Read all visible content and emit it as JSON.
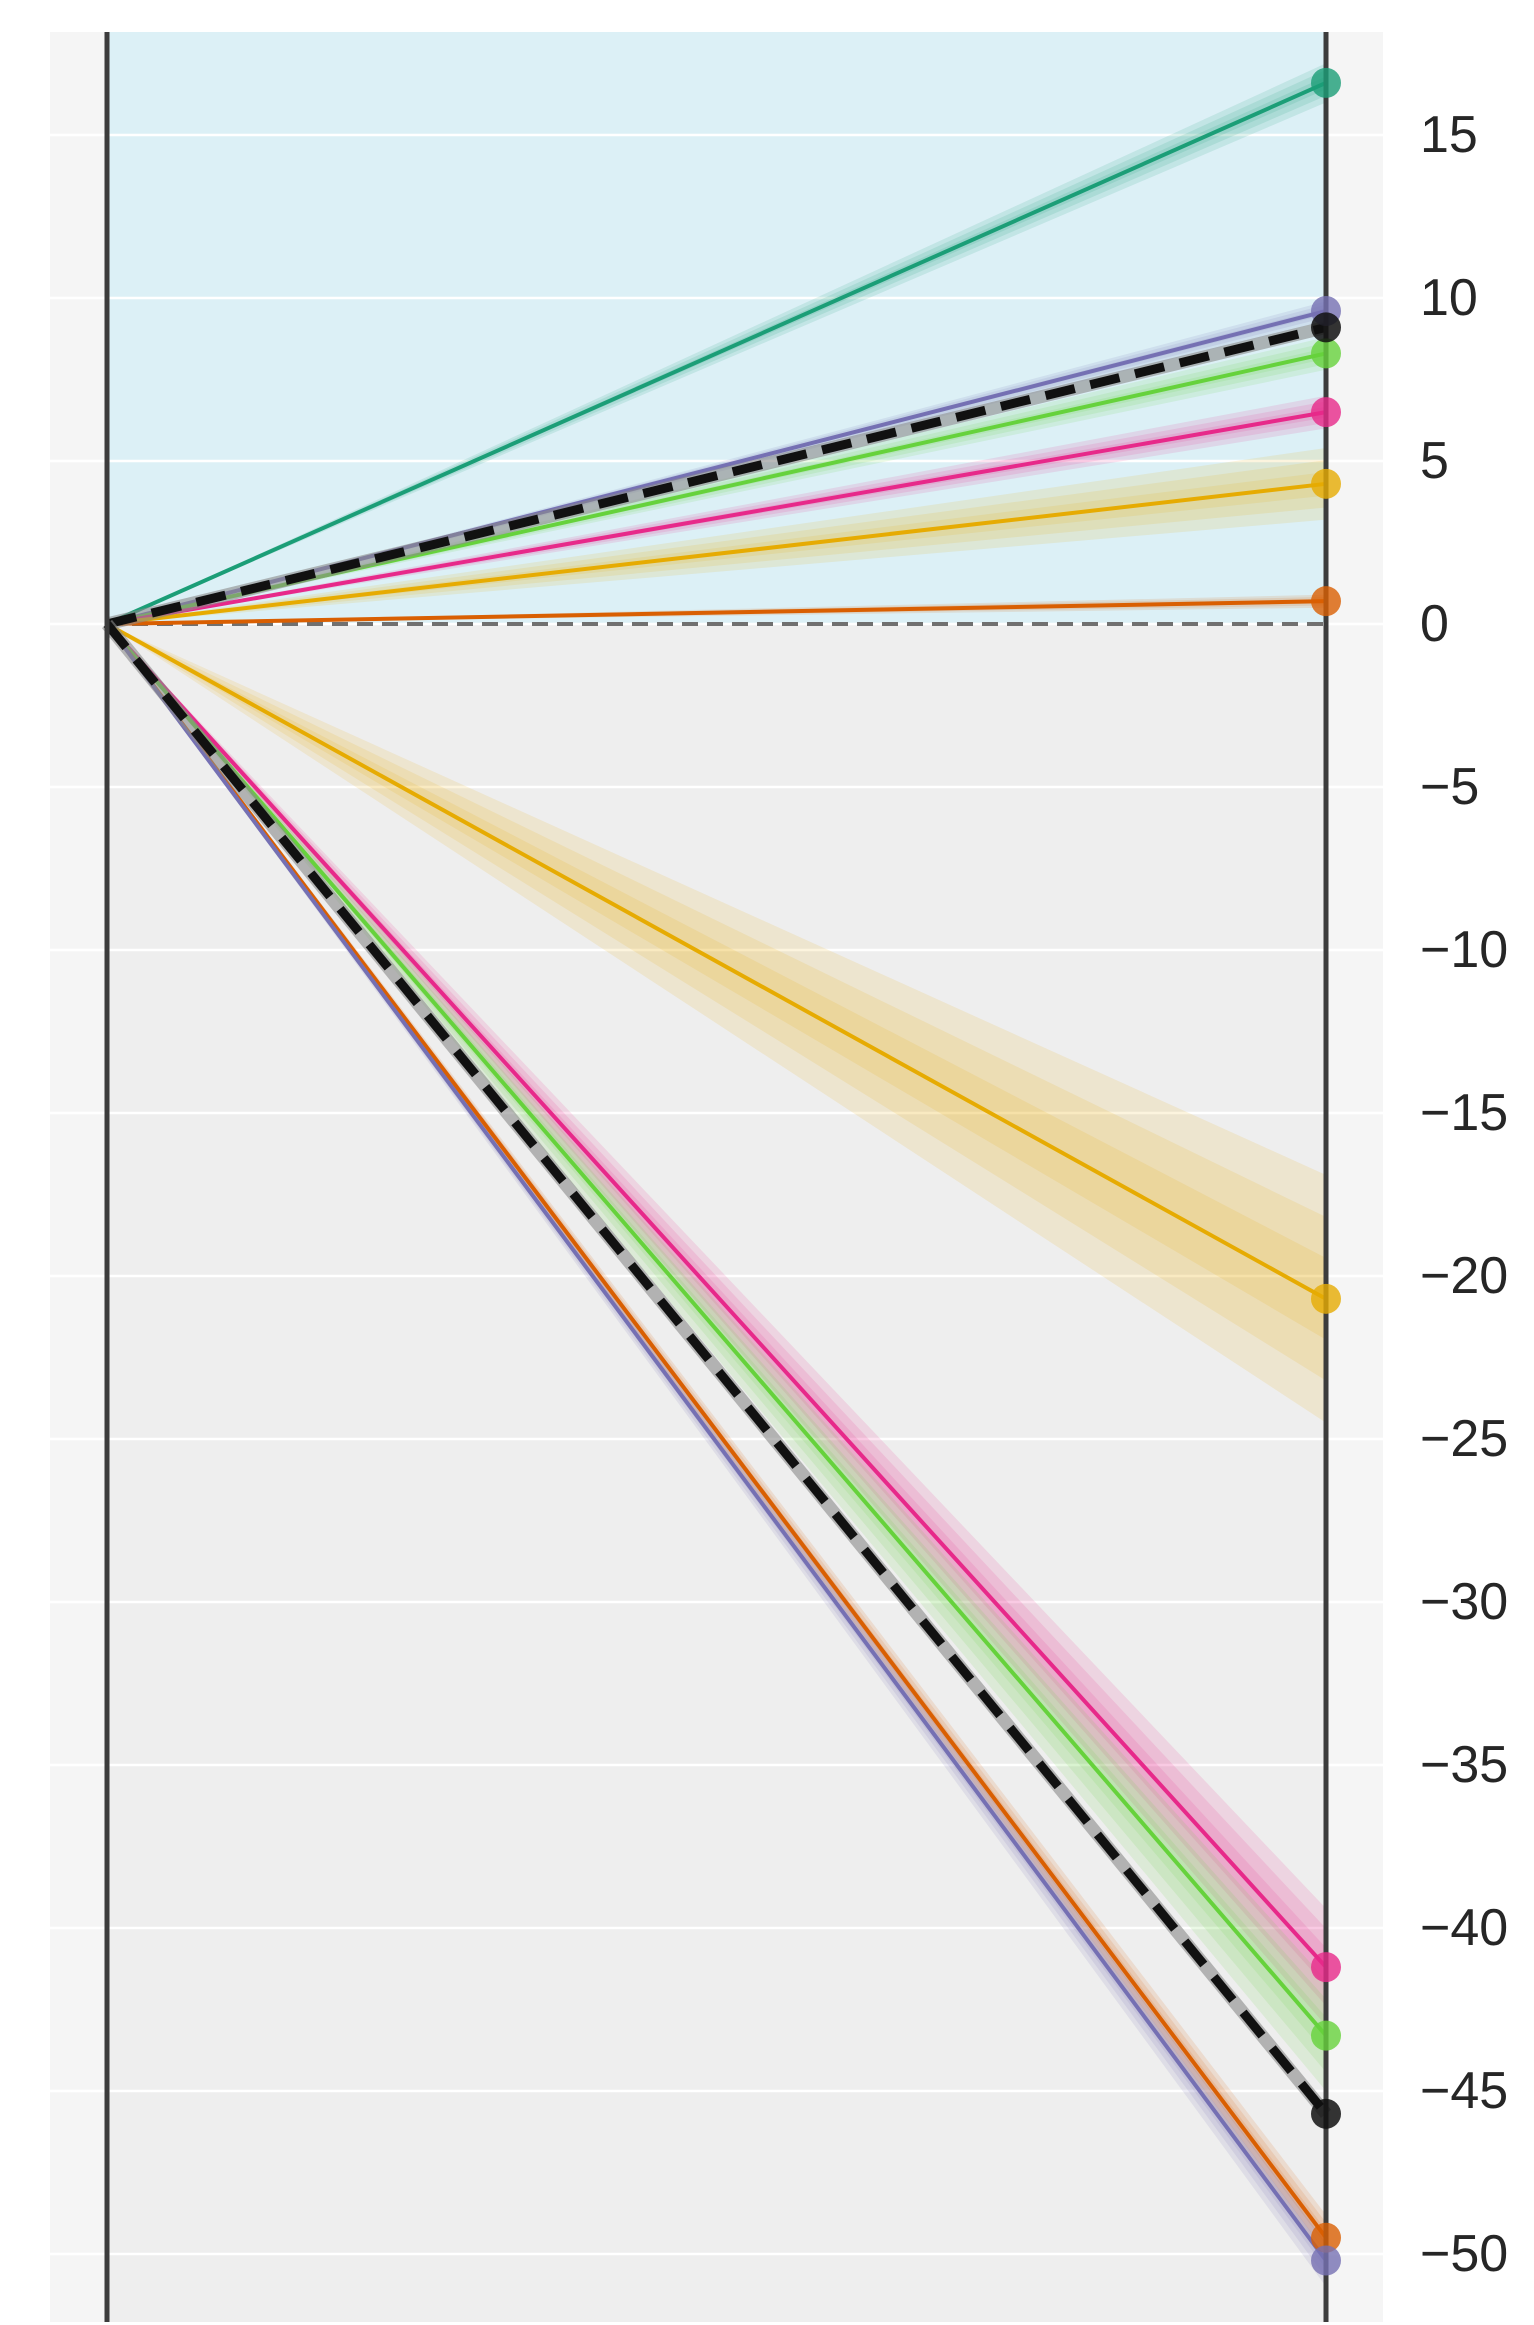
{
  "chart_data": {
    "type": "line",
    "title": "",
    "xlabel": "",
    "ylabel": "",
    "x": [
      0,
      1
    ],
    "ylim": [
      -52,
      18
    ],
    "y_ticks": [
      15,
      10,
      5,
      0,
      -5,
      -10,
      -15,
      -20,
      -25,
      -30,
      -35,
      -40,
      -45,
      -50
    ],
    "y_tick_labels": [
      "15",
      "10",
      "5",
      "0",
      "−5",
      "−10",
      "−15",
      "−20",
      "−25",
      "−30",
      "−35",
      "−40",
      "−45",
      "−50"
    ],
    "grid": true,
    "legend": "none",
    "positive_region_color": "#dcf0f6",
    "negative_region_color": "#eeeeee",
    "outer_background": "#f5f5f5",
    "zero_line_color": "#707070",
    "upper_group": {
      "mean": {
        "color": "#111111",
        "start": 0,
        "end": 9.1,
        "style": "dashed"
      },
      "series": [
        {
          "color": "#1b9e77",
          "start": 0,
          "end": 16.6,
          "band_halfwidth": 0.6
        },
        {
          "color": "#7570b3",
          "start": 0,
          "end": 9.6,
          "band_halfwidth": 0.3
        },
        {
          "color": "#66d23c",
          "start": 0,
          "end": 8.3,
          "band_halfwidth": 0.5
        },
        {
          "color": "#e7298a",
          "start": 0,
          "end": 6.5,
          "band_halfwidth": 0.5
        },
        {
          "color": "#e6ab02",
          "start": 0,
          "end": 4.3,
          "band_halfwidth": 1.1
        },
        {
          "color": "#d95f02",
          "start": 0,
          "end": 0.7,
          "band_halfwidth": 0.2
        }
      ]
    },
    "lower_group": {
      "mean": {
        "color": "#111111",
        "start": 0,
        "end": -45.7,
        "style": "dashed"
      },
      "series": [
        {
          "color": "#e6ab02",
          "start": 0,
          "end": -20.7,
          "band_halfwidth": 3.8
        },
        {
          "color": "#e7298a",
          "start": 0,
          "end": -41.2,
          "band_halfwidth": 1.8
        },
        {
          "color": "#66d23c",
          "start": 0,
          "end": -43.3,
          "band_halfwidth": 1.7
        },
        {
          "color": "#d95f02",
          "start": 0,
          "end": -49.5,
          "band_halfwidth": 0.7
        },
        {
          "color": "#7570b3",
          "start": 0,
          "end": -50.2,
          "band_halfwidth": 0.8
        }
      ]
    }
  }
}
